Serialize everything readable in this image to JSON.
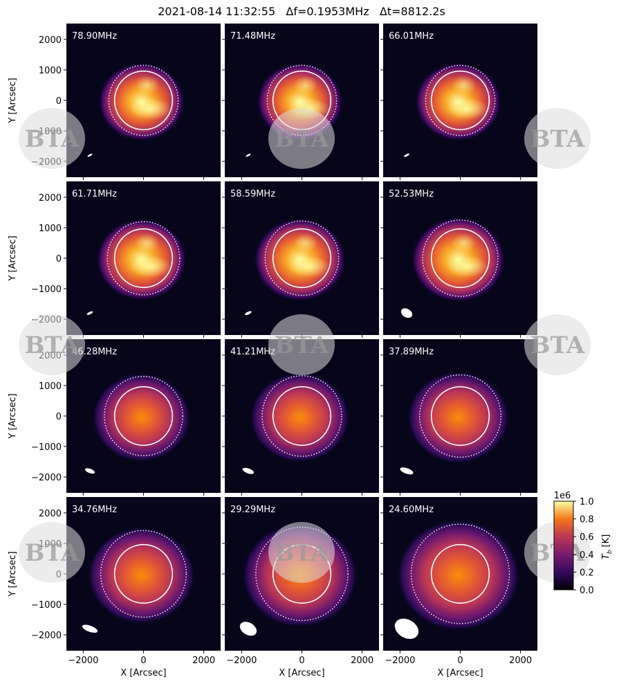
{
  "chart_data": {
    "type": "image-grid",
    "title": "2021-08-14 11:32:55   Δf=0.1953MHz   Δt=8812.2s",
    "xlabel": "X [Arcsec]",
    "ylabel": "Y [Arcsec]",
    "xlim": [
      -2560,
      2560
    ],
    "ylim": [
      -2520,
      2520
    ],
    "xticks": [
      {
        "value": -2000,
        "label": "−2000"
      },
      0,
      2000
    ],
    "yticks": [
      {
        "value": -2000,
        "label": "−2000"
      },
      {
        "value": -1000,
        "label": "−1000"
      },
      0,
      1000,
      2000
    ],
    "disk_radius": 960,
    "panels": [
      {
        "label": "78.90MHz",
        "dotted_radius": 1150,
        "beam": [
          90,
          30,
          -30
        ]
      },
      {
        "label": "71.48MHz",
        "dotted_radius": 1150,
        "beam": [
          90,
          30,
          -30
        ]
      },
      {
        "label": "66.01MHz",
        "dotted_radius": 1150,
        "beam": [
          100,
          35,
          -30
        ]
      },
      {
        "label": "61.71MHz",
        "dotted_radius": 1200,
        "beam": [
          110,
          40,
          -25
        ]
      },
      {
        "label": "58.59MHz",
        "dotted_radius": 1220,
        "beam": [
          120,
          45,
          -25
        ]
      },
      {
        "label": "52.53MHz",
        "dotted_radius": 1250,
        "beam": [
          200,
          140,
          30
        ]
      },
      {
        "label": "46.28MHz",
        "dotted_radius": 1300,
        "beam": [
          170,
          70,
          20
        ]
      },
      {
        "label": "41.21MHz",
        "dotted_radius": 1320,
        "beam": [
          200,
          80,
          20
        ]
      },
      {
        "label": "37.89MHz",
        "dotted_radius": 1350,
        "beam": [
          230,
          90,
          20
        ]
      },
      {
        "label": "34.76MHz",
        "dotted_radius": 1420,
        "beam": [
          270,
          100,
          20
        ]
      },
      {
        "label": "29.29MHz",
        "dotted_radius": 1530,
        "beam": [
          300,
          200,
          30
        ]
      },
      {
        "label": "24.60MHz",
        "dotted_radius": 1630,
        "beam": [
          420,
          300,
          30
        ]
      }
    ],
    "colorbar": {
      "offset": "1e6",
      "symbol": "T",
      "subscript": "b",
      "unit": "[K]",
      "lim": [
        0,
        1
      ],
      "ticks": [
        {
          "value": 0,
          "label": "0.0"
        },
        0.2,
        0.4,
        0.6,
        0.8,
        {
          "value": 1,
          "label": "1.0"
        }
      ]
    },
    "watermark": "BTA"
  }
}
